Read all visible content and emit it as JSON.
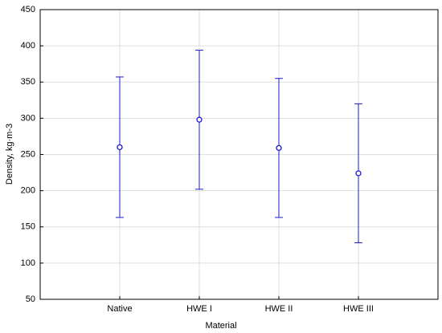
{
  "chart_data": {
    "type": "errorbar",
    "x_label": "Material",
    "y_label": "Density, kg·m-3",
    "categories": [
      "Native",
      "HWE I",
      "HWE II",
      "HWE III"
    ],
    "values": [
      260,
      298,
      259,
      224
    ],
    "errors": [
      97,
      96,
      96,
      96
    ],
    "color": "#1a1acc",
    "ylim": [
      50,
      450
    ],
    "yticks": [
      50,
      100,
      150,
      200,
      250,
      300,
      350,
      400,
      450
    ],
    "grid": true
  }
}
